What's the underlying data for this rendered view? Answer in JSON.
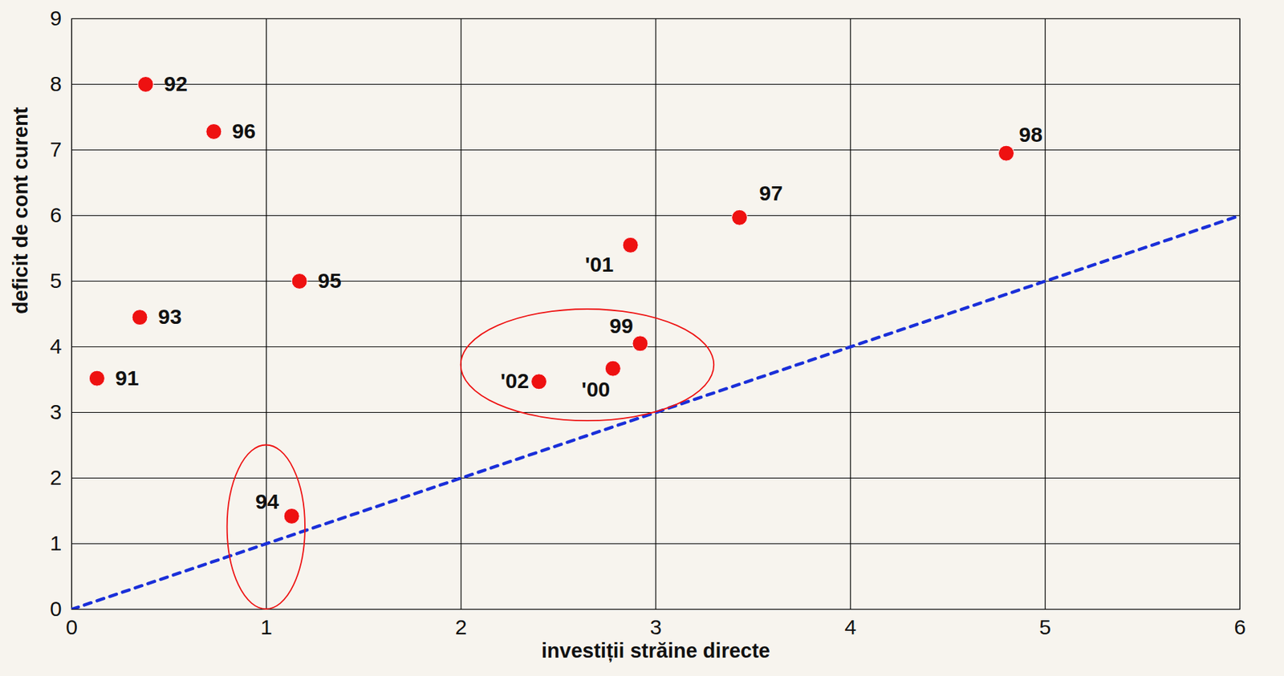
{
  "chart_data": {
    "type": "scatter",
    "x_label": "investiții străine directe",
    "y_label": "deficit de cont curent",
    "x": [
      0.13,
      0.38,
      0.35,
      1.13,
      1.17,
      0.73,
      3.43,
      4.8,
      2.92,
      2.78,
      2.87,
      2.4
    ],
    "values": [
      3.52,
      8.0,
      4.45,
      1.42,
      5.0,
      7.28,
      5.97,
      6.95,
      4.05,
      3.67,
      5.55,
      3.47
    ],
    "point_labels": [
      "91",
      "92",
      "93",
      "94",
      "95",
      "96",
      "97",
      "98",
      "99",
      "'00",
      "'01",
      "'02"
    ],
    "color": "#ee1111",
    "marker": "circle",
    "xlim": [
      0,
      6
    ],
    "xticks": [
      0,
      1,
      2,
      3,
      4,
      5,
      6
    ],
    "ylim": [
      0,
      9
    ],
    "yticks": [
      0,
      1,
      2,
      3,
      4,
      5,
      6,
      7,
      8,
      9
    ],
    "grid": true,
    "reference_line": {
      "x": [
        0,
        6
      ],
      "y": [
        0,
        6
      ],
      "color": "#1a2fd9",
      "line_style": "dashed"
    },
    "highlights": [
      {
        "cx": 1.0,
        "cy": 1.25,
        "rx": 0.2,
        "ry": 1.25,
        "color": "#ee1111"
      },
      {
        "cx": 2.65,
        "cy": 3.72,
        "rx": 0.65,
        "ry": 0.85,
        "color": "#ee1111"
      }
    ]
  }
}
